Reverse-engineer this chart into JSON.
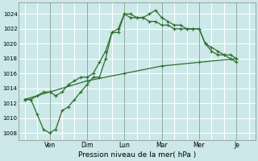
{
  "xlabel": "Pression niveau de la mer( hPa )",
  "background_color": "#cce8e8",
  "grid_color": "#ffffff",
  "line_color": "#2d6e2d",
  "ylim": [
    1007,
    1025.5
  ],
  "yticks": [
    1008,
    1010,
    1012,
    1014,
    1016,
    1018,
    1020,
    1022,
    1024
  ],
  "x_day_labels": [
    "Ven",
    "Dim",
    "Lun",
    "Mar",
    "Mer",
    "Je"
  ],
  "x_day_positions": [
    2.0,
    5.0,
    8.0,
    11.0,
    14.0,
    17.0
  ],
  "x_vlines": [
    2.0,
    5.0,
    8.0,
    11.0,
    14.0,
    17.0
  ],
  "xlim": [
    -0.5,
    18.5
  ],
  "series1_x": [
    0,
    0.5,
    1.0,
    1.5,
    2.0,
    2.5,
    3.0,
    3.5,
    4.0,
    4.5,
    5.0,
    5.5,
    6.0,
    6.5,
    7.0,
    7.5,
    8.0,
    8.5,
    9.0,
    9.5,
    10.0,
    10.5,
    11.0,
    11.5,
    12.0,
    12.5,
    13.0,
    13.5,
    14.0,
    14.5,
    15.0,
    15.5,
    16.0,
    16.5,
    17.0
  ],
  "series1_y": [
    1012.5,
    1012.5,
    1013.0,
    1013.5,
    1013.5,
    1013.0,
    1013.5,
    1014.5,
    1015.0,
    1015.5,
    1015.5,
    1016.0,
    1017.5,
    1019.0,
    1021.5,
    1022.0,
    1024.0,
    1023.5,
    1023.5,
    1023.5,
    1024.0,
    1024.5,
    1023.5,
    1023.0,
    1022.5,
    1022.5,
    1022.0,
    1022.0,
    1022.0,
    1020.0,
    1019.0,
    1018.5,
    1018.5,
    1018.0,
    1017.5
  ],
  "series2_x": [
    0,
    0.5,
    1.0,
    1.5,
    2.0,
    2.5,
    3.0,
    3.5,
    4.0,
    4.5,
    5.0,
    5.5,
    6.0,
    6.5,
    7.0,
    7.5,
    8.0,
    8.5,
    9.0,
    9.5,
    10.0,
    10.5,
    11.0,
    11.5,
    12.0,
    12.5,
    13.0,
    13.5,
    14.0,
    14.5,
    15.0,
    15.5,
    16.0,
    16.5,
    17.0
  ],
  "series2_y": [
    1012.5,
    1012.5,
    1010.5,
    1008.5,
    1008.0,
    1008.5,
    1011.0,
    1011.5,
    1012.5,
    1013.5,
    1014.5,
    1015.5,
    1015.5,
    1018.0,
    1021.5,
    1021.5,
    1024.0,
    1024.0,
    1023.5,
    1023.5,
    1023.0,
    1023.0,
    1022.5,
    1022.5,
    1022.0,
    1022.0,
    1022.0,
    1022.0,
    1022.0,
    1020.0,
    1019.5,
    1019.0,
    1018.5,
    1018.5,
    1018.0
  ],
  "series3_x": [
    0,
    2.0,
    5.0,
    8.0,
    11.0,
    14.0,
    17.0
  ],
  "series3_y": [
    1012.5,
    1013.5,
    1015.0,
    1016.0,
    1017.0,
    1017.5,
    1018.0
  ]
}
